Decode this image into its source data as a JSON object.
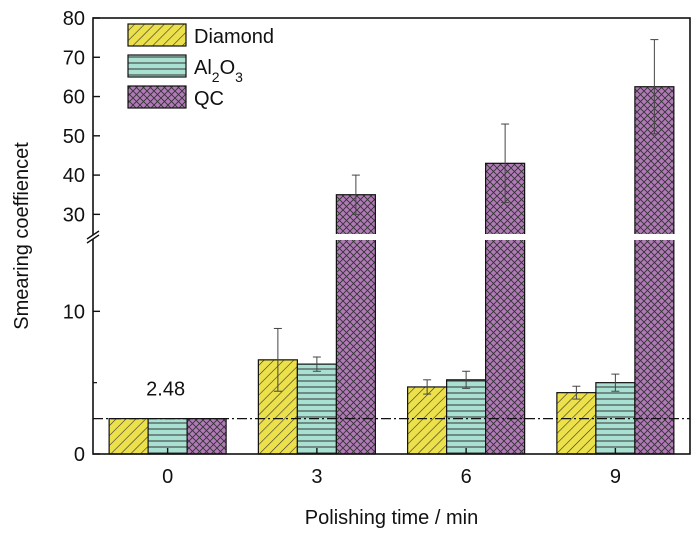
{
  "chart_data": {
    "type": "bar",
    "xlabel": "Polishing time / min",
    "ylabel": "Smearing coeffiencet",
    "categories": [
      "0",
      "3",
      "6",
      "9"
    ],
    "axis_break": {
      "lower_range": [
        0,
        15
      ],
      "upper_range": [
        25,
        80
      ]
    },
    "y_ticks_lower": [
      0,
      10
    ],
    "y_ticks_upper": [
      30,
      40,
      50,
      60,
      70,
      80
    ],
    "series": [
      {
        "name": "Diamond",
        "sub": "",
        "after": "",
        "color": "#ece14a",
        "pattern": "diag",
        "values": [
          2.48,
          6.6,
          4.7,
          4.3
        ],
        "errors": [
          0,
          2.2,
          0.5,
          0.45
        ]
      },
      {
        "name": "Al",
        "sub": "2",
        "mid": "O",
        "sub2": "3",
        "color": "#a8e0d2",
        "pattern": "horiz",
        "values": [
          2.48,
          6.3,
          5.2,
          5.0
        ],
        "errors": [
          0,
          0.5,
          0.6,
          0.6
        ]
      },
      {
        "name": "QC",
        "sub": "",
        "after": "",
        "color": "#b07ab7",
        "pattern": "cross",
        "values": [
          2.48,
          35.0,
          43.0,
          62.5
        ],
        "errors": [
          0,
          5.0,
          10.0,
          12.0
        ]
      }
    ],
    "reference_line": {
      "value": 2.48,
      "label": "2.48",
      "style": "dash-dot"
    },
    "legend_position": "top-left",
    "grid": false
  }
}
